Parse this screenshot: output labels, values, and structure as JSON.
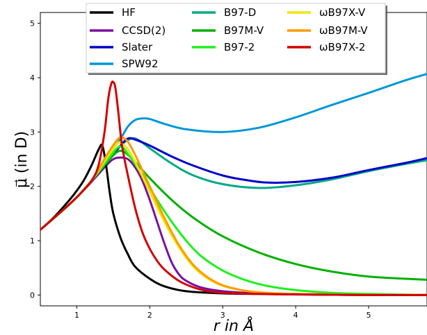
{
  "chart_data": {
    "type": "line",
    "title": "",
    "xlabel": "r in Å",
    "ylabel": "μ⃗ (in D)",
    "xlim": [
      0.5,
      5.8
    ],
    "ylim": [
      -0.2,
      5.2
    ],
    "xticks": [
      "1",
      "2",
      "3",
      "4",
      "5"
    ],
    "xtick_values": [
      1,
      2,
      3,
      4,
      5
    ],
    "yticks": [
      "0",
      "1",
      "2",
      "3",
      "4",
      "5"
    ],
    "ytick_values": [
      0,
      1,
      2,
      3,
      4,
      5
    ],
    "grid": false,
    "legend_placement": "top-center",
    "series": [
      {
        "name": "HF",
        "color": "#000000",
        "points": [
          [
            0.5,
            1.2
          ],
          [
            0.7,
            1.45
          ],
          [
            0.9,
            1.75
          ],
          [
            1.0,
            1.92
          ],
          [
            1.1,
            2.12
          ],
          [
            1.2,
            2.38
          ],
          [
            1.3,
            2.68
          ],
          [
            1.35,
            2.75
          ],
          [
            1.4,
            2.4
          ],
          [
            1.45,
            1.9
          ],
          [
            1.5,
            1.5
          ],
          [
            1.6,
            1.05
          ],
          [
            1.7,
            0.75
          ],
          [
            1.8,
            0.52
          ],
          [
            2.0,
            0.3
          ],
          [
            2.2,
            0.16
          ],
          [
            2.5,
            0.07
          ],
          [
            3.0,
            0.03
          ],
          [
            3.5,
            0.02
          ],
          [
            4.0,
            0.01
          ],
          [
            5.0,
            0.0
          ],
          [
            5.8,
            0.0
          ]
        ]
      },
      {
        "name": "CCSD(2)",
        "color": "#7b0f9e",
        "points": [
          [
            0.5,
            1.2
          ],
          [
            0.8,
            1.55
          ],
          [
            1.0,
            1.8
          ],
          [
            1.2,
            2.08
          ],
          [
            1.4,
            2.38
          ],
          [
            1.5,
            2.5
          ],
          [
            1.6,
            2.53
          ],
          [
            1.7,
            2.5
          ],
          [
            1.8,
            2.35
          ],
          [
            1.9,
            2.1
          ],
          [
            2.0,
            1.75
          ],
          [
            2.1,
            1.35
          ],
          [
            2.2,
            0.95
          ],
          [
            2.3,
            0.6
          ],
          [
            2.4,
            0.38
          ],
          [
            2.5,
            0.26
          ],
          [
            2.7,
            0.14
          ],
          [
            3.0,
            0.07
          ],
          [
            3.5,
            0.03
          ],
          [
            4.0,
            0.02
          ],
          [
            5.0,
            0.0
          ],
          [
            5.8,
            0.0
          ]
        ]
      },
      {
        "name": "Slater",
        "color": "#0000c8",
        "points": [
          [
            0.5,
            1.2
          ],
          [
            0.8,
            1.55
          ],
          [
            1.0,
            1.8
          ],
          [
            1.2,
            2.1
          ],
          [
            1.4,
            2.42
          ],
          [
            1.6,
            2.75
          ],
          [
            1.7,
            2.88
          ],
          [
            1.8,
            2.86
          ],
          [
            2.0,
            2.75
          ],
          [
            2.3,
            2.55
          ],
          [
            2.6,
            2.38
          ],
          [
            3.0,
            2.2
          ],
          [
            3.3,
            2.12
          ],
          [
            3.6,
            2.07
          ],
          [
            4.0,
            2.08
          ],
          [
            4.5,
            2.16
          ],
          [
            5.0,
            2.3
          ],
          [
            5.5,
            2.43
          ],
          [
            5.8,
            2.52
          ]
        ]
      },
      {
        "name": "SPW92",
        "color": "#0096d6",
        "points": [
          [
            0.5,
            1.2
          ],
          [
            0.8,
            1.55
          ],
          [
            1.0,
            1.8
          ],
          [
            1.2,
            2.1
          ],
          [
            1.4,
            2.5
          ],
          [
            1.6,
            2.88
          ],
          [
            1.7,
            3.1
          ],
          [
            1.8,
            3.22
          ],
          [
            1.9,
            3.25
          ],
          [
            2.0,
            3.24
          ],
          [
            2.2,
            3.15
          ],
          [
            2.5,
            3.05
          ],
          [
            3.0,
            3.0
          ],
          [
            3.5,
            3.08
          ],
          [
            4.0,
            3.27
          ],
          [
            4.5,
            3.5
          ],
          [
            5.0,
            3.72
          ],
          [
            5.5,
            3.95
          ],
          [
            5.8,
            4.07
          ]
        ]
      },
      {
        "name": "B97-D",
        "color": "#00a884",
        "points": [
          [
            0.5,
            1.2
          ],
          [
            0.8,
            1.55
          ],
          [
            1.0,
            1.8
          ],
          [
            1.2,
            2.1
          ],
          [
            1.4,
            2.42
          ],
          [
            1.6,
            2.75
          ],
          [
            1.75,
            2.88
          ],
          [
            1.85,
            2.85
          ],
          [
            2.0,
            2.7
          ],
          [
            2.3,
            2.42
          ],
          [
            2.6,
            2.2
          ],
          [
            3.0,
            2.04
          ],
          [
            3.5,
            1.97
          ],
          [
            4.0,
            2.02
          ],
          [
            4.5,
            2.13
          ],
          [
            5.0,
            2.28
          ],
          [
            5.5,
            2.41
          ],
          [
            5.8,
            2.48
          ]
        ]
      },
      {
        "name": "B97M-V",
        "color": "#00b000",
        "points": [
          [
            0.5,
            1.2
          ],
          [
            0.8,
            1.55
          ],
          [
            1.0,
            1.8
          ],
          [
            1.2,
            2.1
          ],
          [
            1.4,
            2.42
          ],
          [
            1.55,
            2.63
          ],
          [
            1.65,
            2.63
          ],
          [
            1.8,
            2.45
          ],
          [
            2.0,
            2.15
          ],
          [
            2.3,
            1.75
          ],
          [
            2.6,
            1.42
          ],
          [
            3.0,
            1.08
          ],
          [
            3.5,
            0.78
          ],
          [
            4.0,
            0.57
          ],
          [
            4.5,
            0.43
          ],
          [
            5.0,
            0.34
          ],
          [
            5.5,
            0.3
          ],
          [
            5.8,
            0.28
          ]
        ]
      },
      {
        "name": "B97-2",
        "color": "#1ef01e",
        "points": [
          [
            0.5,
            1.2
          ],
          [
            0.8,
            1.55
          ],
          [
            1.0,
            1.8
          ],
          [
            1.2,
            2.1
          ],
          [
            1.4,
            2.45
          ],
          [
            1.55,
            2.7
          ],
          [
            1.62,
            2.72
          ],
          [
            1.7,
            2.6
          ],
          [
            1.9,
            2.2
          ],
          [
            2.1,
            1.75
          ],
          [
            2.3,
            1.35
          ],
          [
            2.5,
            1.0
          ],
          [
            2.7,
            0.72
          ],
          [
            3.0,
            0.45
          ],
          [
            3.3,
            0.28
          ],
          [
            3.6,
            0.17
          ],
          [
            4.0,
            0.09
          ],
          [
            4.5,
            0.04
          ],
          [
            5.0,
            0.02
          ],
          [
            5.8,
            0.0
          ]
        ]
      },
      {
        "name": "ωB97X-V",
        "color": "#f0e600",
        "points": [
          [
            0.5,
            1.2
          ],
          [
            0.8,
            1.55
          ],
          [
            1.0,
            1.8
          ],
          [
            1.2,
            2.1
          ],
          [
            1.4,
            2.5
          ],
          [
            1.55,
            2.78
          ],
          [
            1.6,
            2.8
          ],
          [
            1.7,
            2.68
          ],
          [
            1.8,
            2.45
          ],
          [
            2.0,
            1.9
          ],
          [
            2.2,
            1.35
          ],
          [
            2.4,
            0.88
          ],
          [
            2.6,
            0.52
          ],
          [
            2.8,
            0.3
          ],
          [
            3.0,
            0.17
          ],
          [
            3.3,
            0.08
          ],
          [
            3.6,
            0.04
          ],
          [
            4.0,
            0.02
          ],
          [
            5.0,
            0.0
          ],
          [
            5.8,
            0.0
          ]
        ]
      },
      {
        "name": "ωB97M-V",
        "color": "#ff9a00",
        "points": [
          [
            0.5,
            1.2
          ],
          [
            0.8,
            1.55
          ],
          [
            1.0,
            1.8
          ],
          [
            1.2,
            2.1
          ],
          [
            1.4,
            2.55
          ],
          [
            1.55,
            2.85
          ],
          [
            1.62,
            2.9
          ],
          [
            1.7,
            2.82
          ],
          [
            1.8,
            2.58
          ],
          [
            2.0,
            2.0
          ],
          [
            2.2,
            1.42
          ],
          [
            2.4,
            0.92
          ],
          [
            2.6,
            0.55
          ],
          [
            2.8,
            0.32
          ],
          [
            3.0,
            0.18
          ],
          [
            3.3,
            0.08
          ],
          [
            3.6,
            0.04
          ],
          [
            4.0,
            0.02
          ],
          [
            5.0,
            0.0
          ],
          [
            5.8,
            0.0
          ]
        ]
      },
      {
        "name": "ωB97X-2",
        "color": "#d00000",
        "points": [
          [
            0.5,
            1.2
          ],
          [
            0.8,
            1.55
          ],
          [
            1.0,
            1.8
          ],
          [
            1.2,
            2.1
          ],
          [
            1.3,
            2.4
          ],
          [
            1.38,
            3.0
          ],
          [
            1.43,
            3.6
          ],
          [
            1.47,
            3.88
          ],
          [
            1.5,
            3.92
          ],
          [
            1.53,
            3.8
          ],
          [
            1.57,
            3.35
          ],
          [
            1.62,
            2.75
          ],
          [
            1.7,
            2.2
          ],
          [
            1.8,
            1.6
          ],
          [
            1.9,
            1.15
          ],
          [
            2.0,
            0.85
          ],
          [
            2.1,
            0.63
          ],
          [
            2.2,
            0.47
          ],
          [
            2.4,
            0.26
          ],
          [
            2.6,
            0.14
          ],
          [
            2.8,
            0.07
          ],
          [
            3.0,
            0.04
          ],
          [
            3.5,
            0.02
          ],
          [
            4.0,
            0.01
          ],
          [
            5.0,
            0.0
          ],
          [
            5.8,
            0.0
          ]
        ]
      }
    ]
  }
}
